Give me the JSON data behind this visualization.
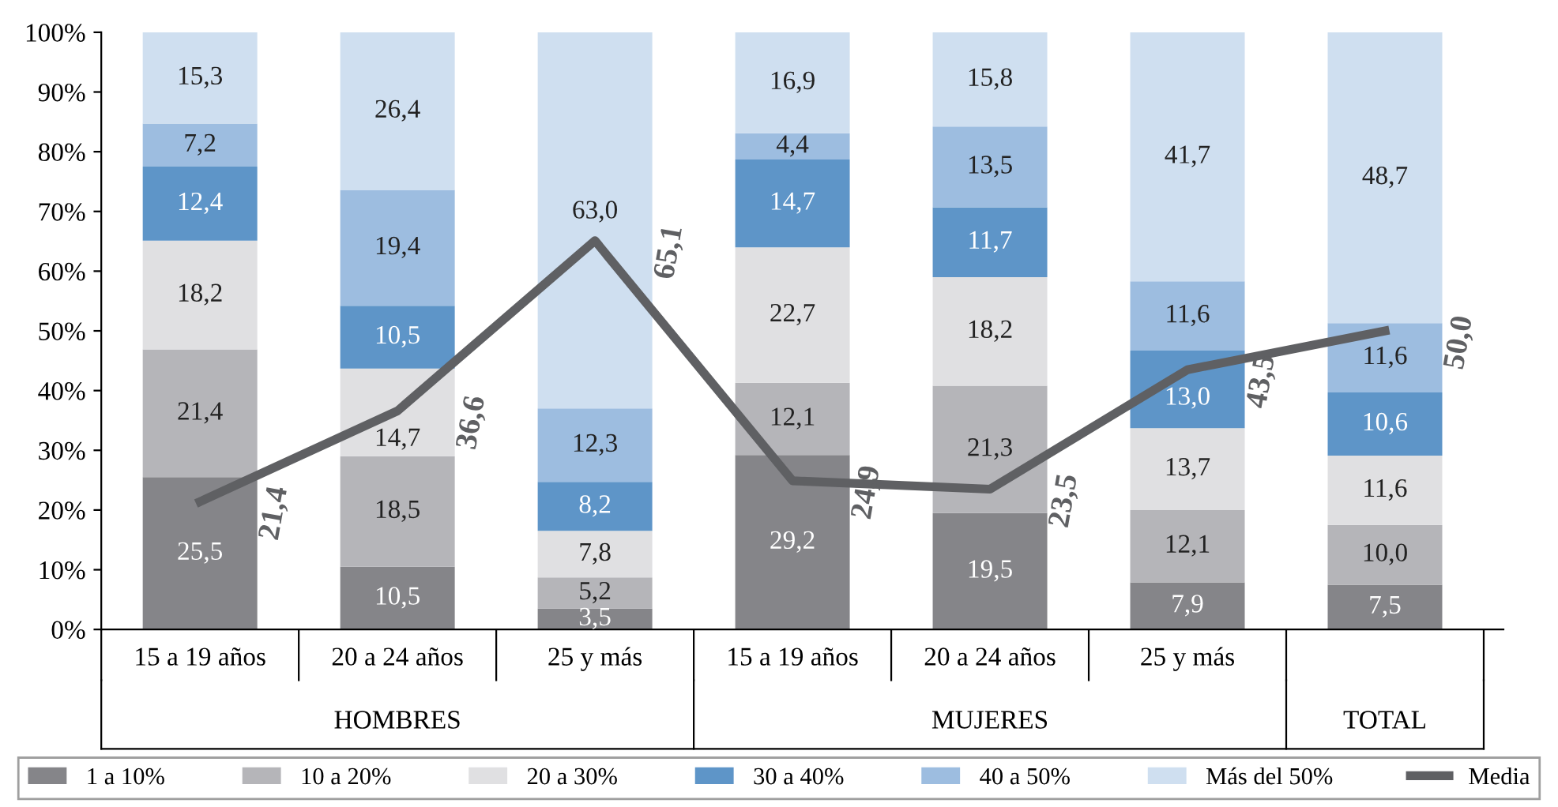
{
  "chart_data": {
    "type": "bar",
    "stacked": true,
    "categories": [
      "15 a 19 años",
      "20 a 24 años",
      "25 y más",
      "15 a 19 años",
      "20 a 24 años",
      "25 y más",
      null
    ],
    "series": [
      {
        "name": "1 a 10%",
        "color": "#858589",
        "values": [
          25.5,
          10.5,
          3.5,
          29.2,
          19.5,
          7.9,
          7.5
        ],
        "value_labels": [
          "25,5",
          "10,5",
          "3,5",
          "29,2",
          "19,5",
          "7,9",
          "7,5"
        ]
      },
      {
        "name": "10 a 20%",
        "color": "#b5b5b9",
        "values": [
          21.4,
          18.5,
          5.2,
          12.1,
          21.3,
          12.1,
          10.0
        ],
        "value_labels": [
          "21,4",
          "18,5",
          "5,2",
          "12,1",
          "21,3",
          "12,1",
          "10,0"
        ]
      },
      {
        "name": "20 a 30%",
        "color": "#e0e0e2",
        "values": [
          18.2,
          14.7,
          7.8,
          22.7,
          18.2,
          13.7,
          11.6
        ],
        "value_labels": [
          "18,2",
          "14,7",
          "7,8",
          "22,7",
          "18,2",
          "13,7",
          "11,6"
        ]
      },
      {
        "name": "30 a 40%",
        "color": "#5e95c8",
        "values": [
          12.4,
          10.5,
          8.2,
          14.7,
          11.7,
          13.0,
          10.6
        ],
        "value_labels": [
          "12,4",
          "10,5",
          "8,2",
          "14,7",
          "11,7",
          "13,0",
          "10,6"
        ]
      },
      {
        "name": "40 a 50%",
        "color": "#9dbde0",
        "values": [
          7.2,
          19.4,
          12.3,
          4.4,
          13.5,
          11.6,
          11.6
        ],
        "value_labels": [
          "7,2",
          "19,4",
          "12,3",
          "4,4",
          "13,5",
          "11,6",
          "11,6"
        ]
      },
      {
        "name": "Más del 50%",
        "color": "#cfdff0",
        "values": [
          15.3,
          26.4,
          63.0,
          16.9,
          15.8,
          41.7,
          48.7
        ],
        "value_labels": [
          "15,3",
          "26,4",
          "63,0",
          "16,9",
          "15,8",
          "41,7",
          "48,7"
        ]
      },
      {
        "name": "Media",
        "type": "line",
        "color": "#5f6063",
        "values": [
          21.4,
          36.6,
          65.1,
          24.9,
          23.5,
          43.5,
          50.0
        ],
        "value_labels": [
          "21,4",
          "36,6",
          "65,1",
          "24,9",
          "23,5",
          "43,5",
          "50,0"
        ]
      }
    ],
    "ylim": [
      0,
      100
    ],
    "yticks": [
      {
        "value": 0,
        "label": "0%"
      },
      {
        "value": 10,
        "label": "10%"
      },
      {
        "value": 20,
        "label": "20%"
      },
      {
        "value": 30,
        "label": "30%"
      },
      {
        "value": 40,
        "label": "40%"
      },
      {
        "value": 50,
        "label": "50%"
      },
      {
        "value": 60,
        "label": "60%"
      },
      {
        "value": 70,
        "label": "70%"
      },
      {
        "value": 80,
        "label": "80%"
      },
      {
        "value": 90,
        "label": "90%"
      },
      {
        "value": 100,
        "label": "100%"
      }
    ],
    "annotations": [
      "HOMBRES",
      "MUJERES",
      "TOTAL"
    ],
    "grid": false,
    "legend": "bottom",
    "marker": "none",
    "line_style": "solid"
  }
}
